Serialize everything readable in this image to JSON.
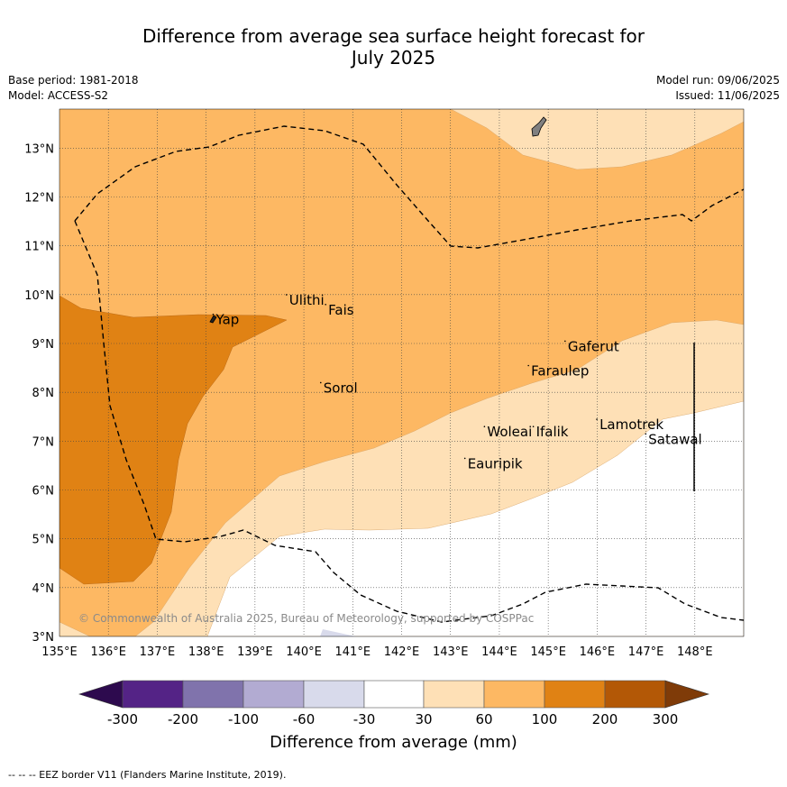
{
  "title_line1": "Difference from average sea surface height forecast for",
  "title_line2": "July 2025",
  "meta": {
    "base_period": "Base period: 1981-2018",
    "model": "Model: ACCESS-S2",
    "model_run": "Model run: 09/06/2025",
    "issued": "Issued: 11/06/2025"
  },
  "copyright": "© Commonwealth of Australia 2025, Bureau of Meteorology, supported by COSPPac",
  "lon_labels": [
    "135°E",
    "136°E",
    "137°E",
    "138°E",
    "139°E",
    "140°E",
    "141°E",
    "142°E",
    "143°E",
    "144°E",
    "145°E",
    "146°E",
    "147°E",
    "148°E"
  ],
  "lat_labels": [
    "3°N",
    "4°N",
    "5°N",
    "6°N",
    "7°N",
    "8°N",
    "9°N",
    "10°N",
    "11°N",
    "12°N",
    "13°N"
  ],
  "places": [
    {
      "name": "Yap",
      "lon": 138.2,
      "lat": 9.45
    },
    {
      "name": "Ulithi",
      "lon": 139.7,
      "lat": 9.85
    },
    {
      "name": "Fais",
      "lon": 140.5,
      "lat": 9.65
    },
    {
      "name": "Sorol",
      "lon": 140.4,
      "lat": 8.05
    },
    {
      "name": "Gaferut",
      "lon": 145.4,
      "lat": 8.9
    },
    {
      "name": "Faraulep",
      "lon": 144.65,
      "lat": 8.4
    },
    {
      "name": "Woleai",
      "lon": 143.75,
      "lat": 7.15
    },
    {
      "name": "Ifalik",
      "lon": 144.75,
      "lat": 7.15
    },
    {
      "name": "Lamotrek",
      "lon": 146.05,
      "lat": 7.3
    },
    {
      "name": "Satawal",
      "lon": 147.05,
      "lat": 7.0
    },
    {
      "name": "Eauripik",
      "lon": 143.35,
      "lat": 6.5
    }
  ],
  "colorbar": {
    "labels": [
      "-300",
      "-200",
      "-100",
      "-60",
      "-30",
      "30",
      "60",
      "100",
      "200",
      "300"
    ],
    "title": "Difference from average (mm)",
    "colors": {
      "below_-300": "#2d0a4e",
      "-300_-200": "#542386",
      "-200_-100": "#8073ac",
      "-100_-60": "#b2abd2",
      "-60_-30": "#d8daeb",
      "-30_30": "#ffffff",
      "30_60": "#fee0b6",
      "60_100": "#fdb863",
      "100_200": "#e08214",
      "200_300": "#b35806",
      "above_300": "#7f3b08"
    }
  },
  "footnote": "-- -- -- EEZ border V11 (Flanders Marine Institute, 2019)."
}
